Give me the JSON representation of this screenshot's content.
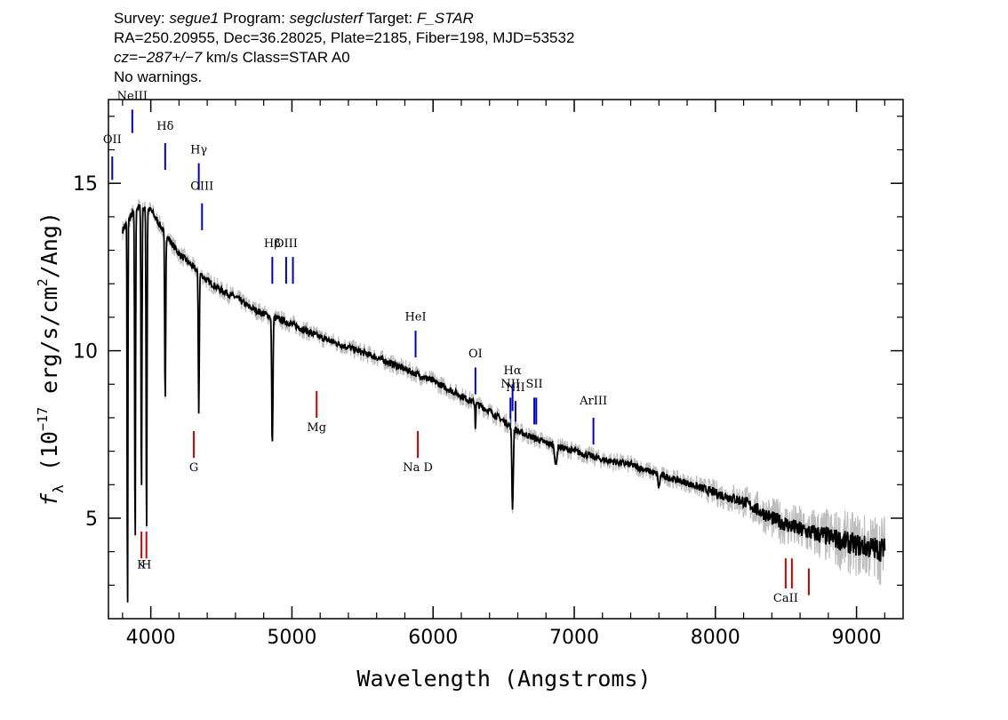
{
  "header": {
    "line1": {
      "survey_label": "Survey:",
      "survey": "segue1",
      "program_label": "Program:",
      "program": "segclusterf",
      "target_label": "Target:",
      "target": "F_STAR"
    },
    "line2": "RA=250.20955, Dec=36.28025, Plate=2185, Fiber=198, MJD=53532",
    "line3": {
      "cz": "cz=−287+/−7",
      "rest": " km/s Class=STAR A0"
    },
    "line4": "No warnings."
  },
  "chart_data": {
    "type": "line",
    "xlabel": "Wavelength (Angstroms)",
    "ylabel_html": "f_λ (10^-17 erg/s/cm^2/Ang)",
    "ylabel_parts": {
      "f": "f",
      "sub": "λ",
      "pre": " (10",
      "exp": "−17",
      "mid": " erg/s/cm",
      "exp2": "2",
      "post": "/Ang)"
    },
    "xlim": [
      3700,
      9330
    ],
    "ylim": [
      2,
      17.5
    ],
    "xticks": [
      4000,
      5000,
      6000,
      7000,
      8000,
      9000
    ],
    "xtick_labels": [
      "4000",
      "5000",
      "6000",
      "7000",
      "8000",
      "9000"
    ],
    "yticks": [
      5,
      10,
      15
    ],
    "ytick_labels": [
      "5",
      "10",
      "15"
    ],
    "series": [
      {
        "color": "#000000",
        "continuum": [
          [
            3800,
            13.6
          ],
          [
            3900,
            14.3
          ],
          [
            4000,
            14.2
          ],
          [
            4100,
            13.5
          ],
          [
            4200,
            12.9
          ],
          [
            4300,
            12.5
          ],
          [
            4400,
            12.1
          ],
          [
            4500,
            11.8
          ],
          [
            4600,
            11.6
          ],
          [
            4700,
            11.3
          ],
          [
            4800,
            11.1
          ],
          [
            4900,
            10.95
          ],
          [
            5000,
            10.8
          ],
          [
            5200,
            10.4
          ],
          [
            5400,
            10.1
          ],
          [
            5600,
            9.8
          ],
          [
            5800,
            9.45
          ],
          [
            6000,
            9.1
          ],
          [
            6200,
            8.65
          ],
          [
            6400,
            8.2
          ],
          [
            6600,
            7.6
          ],
          [
            6800,
            7.25
          ],
          [
            7000,
            7.0
          ],
          [
            7200,
            6.75
          ],
          [
            7400,
            6.6
          ],
          [
            7600,
            6.3
          ],
          [
            7800,
            6.05
          ],
          [
            8000,
            5.75
          ],
          [
            8200,
            5.5
          ],
          [
            8400,
            5.0
          ],
          [
            8600,
            4.65
          ],
          [
            8800,
            4.45
          ],
          [
            9000,
            4.2
          ],
          [
            9200,
            4.05
          ]
        ],
        "absorption_features": [
          [
            3835,
            12.4,
            3.5
          ],
          [
            3889,
            10.2,
            4.5
          ],
          [
            3934,
            8.7,
            4.5
          ],
          [
            3970,
            9.9,
            4.5
          ],
          [
            4102,
            5.0,
            5
          ],
          [
            4340,
            4.2,
            5
          ],
          [
            4861,
            3.9,
            6
          ],
          [
            6563,
            2.4,
            7
          ],
          [
            6300,
            0.8,
            3
          ],
          [
            6870,
            0.6,
            10
          ],
          [
            7600,
            0.4,
            8
          ]
        ]
      }
    ],
    "line_markers": [
      {
        "label": "OII",
        "x": 3727,
        "color": "#0000cc",
        "y_top": 15.8,
        "y_bottom": 15.1,
        "label_y": 16.2
      },
      {
        "label": "NeIII",
        "x": 3869,
        "color": "#0000cc",
        "y_top": 17.2,
        "y_bottom": 16.5,
        "label_y": 17.5
      },
      {
        "label": "Hδ",
        "x": 4102,
        "color": "#0000cc",
        "y_top": 16.2,
        "y_bottom": 15.4,
        "label_y": 16.6
      },
      {
        "label": "Hγ",
        "x": 4340,
        "color": "#0000cc",
        "y_top": 15.6,
        "y_bottom": 14.8,
        "label_y": 15.9
      },
      {
        "label": "OIII",
        "x": 4363,
        "color": "#0000cc",
        "y_top": 14.4,
        "y_bottom": 13.6,
        "label_y": 14.8
      },
      {
        "label": "Hβ",
        "x": 4861,
        "color": "#0000cc",
        "y_top": 12.8,
        "y_bottom": 12.0,
        "label_y": 13.1
      },
      {
        "label": "OIII",
        "x": 4959,
        "color": "#0000cc",
        "y_top": 12.8,
        "y_bottom": 12.0,
        "label_y": 13.1
      },
      {
        "label": "",
        "x": 5007,
        "color": "#0000cc",
        "y_top": 12.8,
        "y_bottom": 12.0,
        "label_y": 13.1
      },
      {
        "label": "HeI",
        "x": 5876,
        "color": "#0000cc",
        "y_top": 10.6,
        "y_bottom": 9.8,
        "label_y": 10.9
      },
      {
        "label": "OI",
        "x": 6300,
        "color": "#0000cc",
        "y_top": 9.5,
        "y_bottom": 8.7,
        "label_y": 9.8
      },
      {
        "label": "NII",
        "x": 6548,
        "color": "#0000cc",
        "y_top": 8.6,
        "y_bottom": 7.8,
        "label_y": 8.9
      },
      {
        "label": "Hα",
        "x": 6563,
        "color": "#0000cc",
        "y_top": 9.0,
        "y_bottom": 8.2,
        "label_y": 9.3
      },
      {
        "label": "NII",
        "x": 6584,
        "color": "#0000cc",
        "y_top": 8.5,
        "y_bottom": 7.7,
        "label_y": 8.8
      },
      {
        "label": "SII",
        "x": 6717,
        "color": "#0000cc",
        "y_top": 8.6,
        "y_bottom": 7.8,
        "label_y": 8.9
      },
      {
        "label": "",
        "x": 6731,
        "color": "#0000cc",
        "y_top": 8.6,
        "y_bottom": 7.8,
        "label_y": 8.9
      },
      {
        "label": "ArIII",
        "x": 7136,
        "color": "#0000cc",
        "y_top": 8.0,
        "y_bottom": 7.2,
        "label_y": 8.4
      },
      {
        "label": "K",
        "x": 3934,
        "color": "#cc0000",
        "y_top": 4.6,
        "y_bottom": 3.8,
        "label_y": 3.5
      },
      {
        "label": "H",
        "x": 3969,
        "color": "#cc0000",
        "y_top": 4.6,
        "y_bottom": 3.8,
        "label_y": 3.5
      },
      {
        "label": "G",
        "x": 4305,
        "color": "#cc0000",
        "y_top": 7.6,
        "y_bottom": 6.8,
        "label_y": 6.4
      },
      {
        "label": "Mg",
        "x": 5175,
        "color": "#cc0000",
        "y_top": 8.8,
        "y_bottom": 8.0,
        "label_y": 7.6
      },
      {
        "label": "Na D",
        "x": 5892,
        "color": "#cc0000",
        "y_top": 7.6,
        "y_bottom": 6.8,
        "label_y": 6.4
      },
      {
        "label": "CaII",
        "x": 8498,
        "color": "#cc0000",
        "y_top": 3.8,
        "y_bottom": 2.9,
        "label_y": 2.5
      },
      {
        "label": "",
        "x": 8542,
        "color": "#cc0000",
        "y_top": 3.8,
        "y_bottom": 2.9,
        "label_y": 2.5
      },
      {
        "label": "",
        "x": 8662,
        "color": "#cc0000",
        "y_top": 3.5,
        "y_bottom": 2.7,
        "label_y": 2.5
      }
    ]
  }
}
